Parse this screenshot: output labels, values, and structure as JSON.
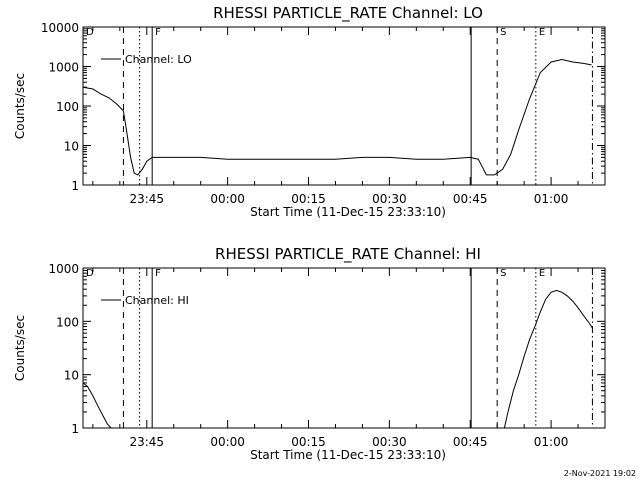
{
  "footer": {
    "timestamp": "2-Nov-2021 19:02"
  },
  "chart_data": [
    {
      "type": "line",
      "title": "RHESSI PARTICLE_RATE Channel: LO",
      "xlabel": "Start Time (11-Dec-15 23:33:10)",
      "ylabel": "Counts/sec",
      "yscale": "log",
      "ylim": [
        1,
        10000
      ],
      "xlim": [
        "23:33:10",
        "01:10:00"
      ],
      "y_ticks": [
        1,
        10,
        100,
        1000,
        10000
      ],
      "y_tick_labels": [
        "1",
        "10",
        "100",
        "1000",
        "10000"
      ],
      "x_ticks": [
        "23:45",
        "00:00",
        "00:15",
        "00:30",
        "00:45",
        "01:00"
      ],
      "legend": {
        "entries": [
          "Channel: LO"
        ],
        "placement": "top-left"
      },
      "markers": [
        {
          "label": "D",
          "time": "23:33:10",
          "style": "solid"
        },
        {
          "label": "",
          "time": "23:40:40",
          "style": "dashed"
        },
        {
          "label": "",
          "time": "23:43:40",
          "style": "dotted"
        },
        {
          "label": "F",
          "time": "23:46:00",
          "style": "solid"
        },
        {
          "label": "",
          "time": "00:45:10",
          "style": "solid"
        },
        {
          "label": "S",
          "time": "00:50:00",
          "style": "dashed"
        },
        {
          "label": "E",
          "time": "00:57:10",
          "style": "dotted"
        },
        {
          "label": "",
          "time": "01:07:40",
          "style": "dashdot"
        }
      ],
      "series": [
        {
          "name": "Channel: LO",
          "x": [
            "23:33:10",
            "23:35:00",
            "23:36:30",
            "23:38:00",
            "23:39:30",
            "23:40:40",
            "23:41:20",
            "23:42:00",
            "23:42:40",
            "23:43:20",
            "23:44:10",
            "23:45:00",
            "23:46:00",
            "23:50:00",
            "23:55:00",
            "00:00:00",
            "00:05:00",
            "00:10:00",
            "00:15:00",
            "00:20:00",
            "00:25:00",
            "00:30:00",
            "00:35:00",
            "00:40:00",
            "00:45:00",
            "00:46:30",
            "00:48:00",
            "00:49:30",
            "00:51:00",
            "00:52:30",
            "00:54:00",
            "00:56:00",
            "00:58:00",
            "01:00:00",
            "01:02:00",
            "01:04:00",
            "01:06:00",
            "01:07:30"
          ],
          "y": [
            300,
            270,
            200,
            160,
            110,
            75,
            20,
            5,
            2,
            1.8,
            2.5,
            4,
            5,
            5,
            5,
            4.5,
            4.5,
            4.5,
            4.5,
            4.5,
            5,
            5,
            4.5,
            4.5,
            5,
            4.5,
            1.8,
            1.8,
            2.5,
            6,
            25,
            150,
            700,
            1300,
            1500,
            1300,
            1200,
            1100
          ]
        }
      ]
    },
    {
      "type": "line",
      "title": "RHESSI PARTICLE_RATE Channel: HI",
      "xlabel": "Start Time (11-Dec-15 23:33:10)",
      "ylabel": "Counts/sec",
      "yscale": "log",
      "ylim": [
        1,
        1000
      ],
      "xlim": [
        "23:33:10",
        "01:10:00"
      ],
      "y_ticks": [
        1,
        10,
        100,
        1000
      ],
      "y_tick_labels": [
        "1",
        "10",
        "100",
        "1000"
      ],
      "x_ticks": [
        "23:45",
        "00:00",
        "00:15",
        "00:30",
        "00:45",
        "01:00"
      ],
      "legend": {
        "entries": [
          "Channel: HI"
        ],
        "placement": "top-left"
      },
      "markers": [
        {
          "label": "D",
          "time": "23:33:10",
          "style": "solid"
        },
        {
          "label": "",
          "time": "23:40:40",
          "style": "dashed"
        },
        {
          "label": "",
          "time": "23:43:40",
          "style": "dotted"
        },
        {
          "label": "F",
          "time": "23:46:00",
          "style": "solid"
        },
        {
          "label": "",
          "time": "00:45:10",
          "style": "solid"
        },
        {
          "label": "S",
          "time": "00:50:00",
          "style": "dashed"
        },
        {
          "label": "E",
          "time": "00:57:10",
          "style": "dotted"
        },
        {
          "label": "",
          "time": "01:07:40",
          "style": "dashdot"
        }
      ],
      "series": [
        {
          "name": "Channel: HI",
          "x": [
            "23:33:10",
            "23:34:00",
            "23:35:00",
            "23:36:00",
            "23:37:00",
            "23:37:40",
            "23:38:20"
          ],
          "y": [
            7,
            6,
            4,
            2.5,
            1.6,
            1.2,
            1
          ]
        },
        {
          "name": "Channel: HI",
          "x": [
            "00:51:20",
            "00:52:00",
            "00:53:00",
            "00:54:00",
            "00:55:00",
            "00:56:00",
            "00:57:00",
            "00:58:00",
            "00:59:00",
            "01:00:00",
            "01:01:00",
            "01:02:00",
            "01:03:00",
            "01:04:00",
            "01:05:00",
            "01:06:00",
            "01:07:00",
            "01:07:40"
          ],
          "y": [
            1,
            2,
            5,
            10,
            22,
            45,
            80,
            150,
            260,
            350,
            380,
            350,
            300,
            240,
            180,
            130,
            95,
            75
          ]
        }
      ]
    }
  ]
}
